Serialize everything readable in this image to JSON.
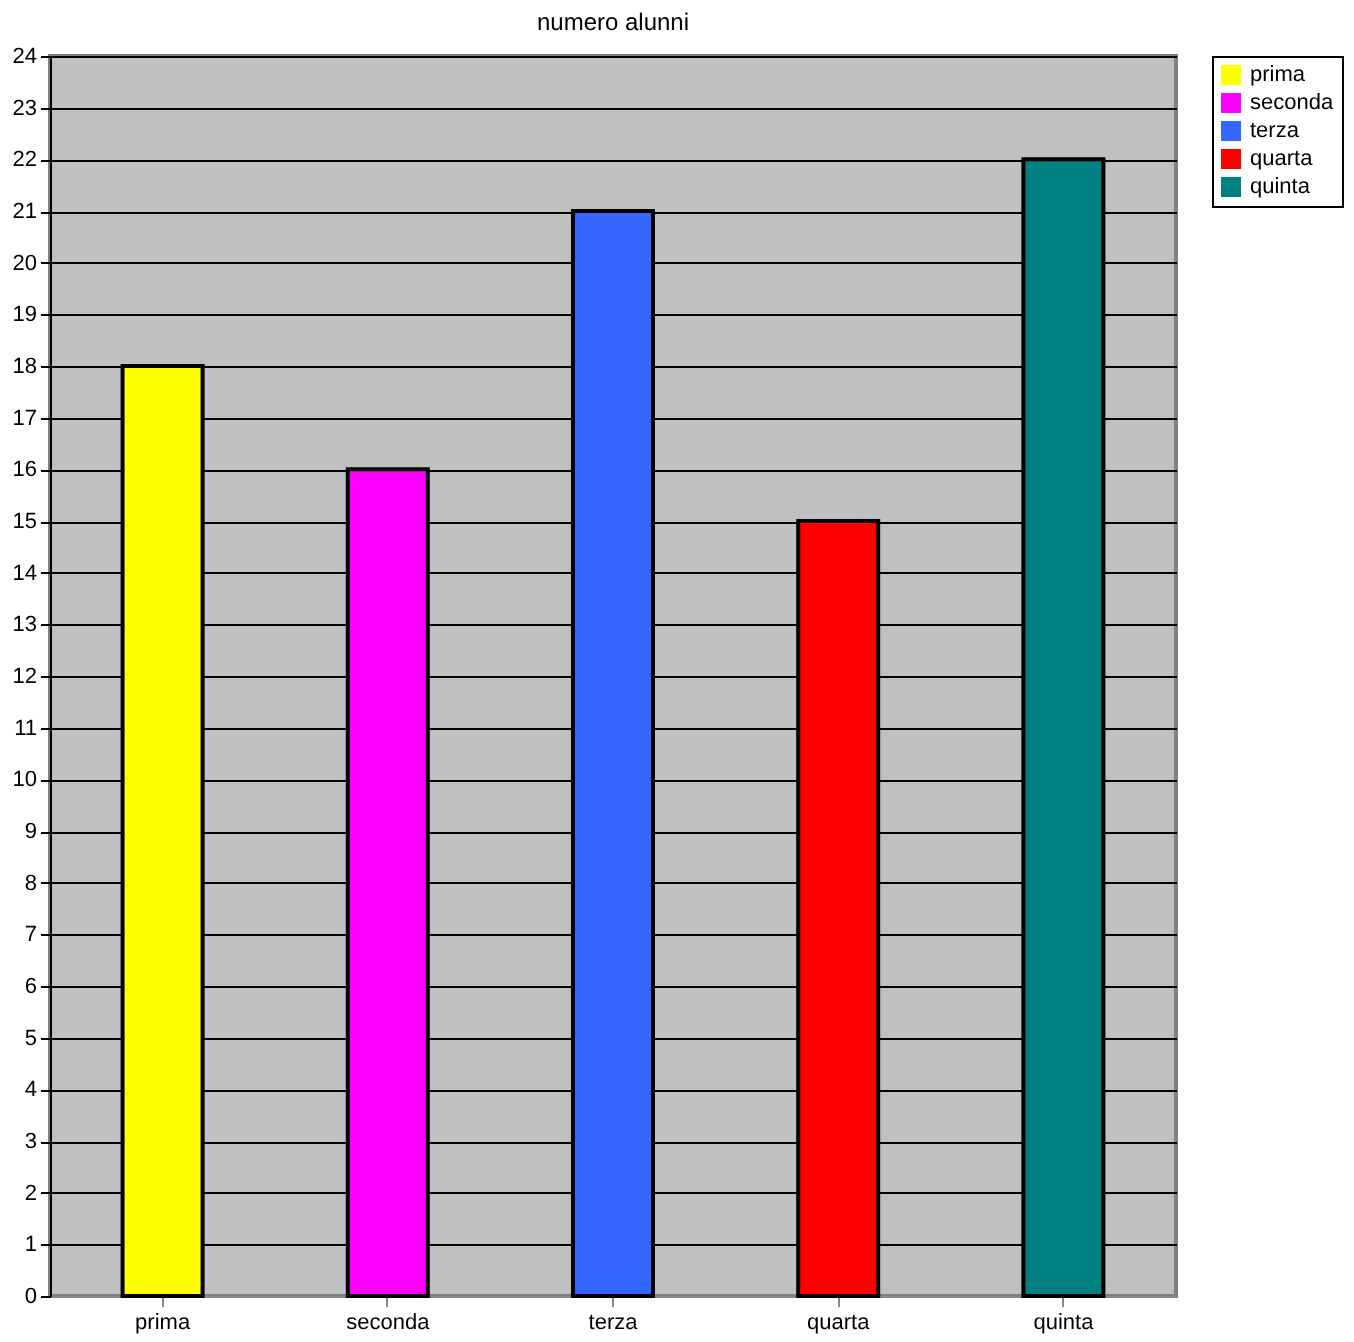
{
  "chart_data": {
    "type": "bar",
    "title": "numero alunni",
    "categories": [
      "prima",
      "seconda",
      "terza",
      "quarta",
      "quinta"
    ],
    "stacked": true,
    "series": [
      {
        "name": "prima",
        "color": "#ffff00",
        "values": [
          18,
          null,
          null,
          null,
          null
        ]
      },
      {
        "name": "seconda",
        "color": "#ff00ff",
        "values": [
          null,
          16,
          null,
          null,
          null
        ]
      },
      {
        "name": "terza",
        "color": "#3366ff",
        "values": [
          null,
          null,
          21,
          null,
          null
        ]
      },
      {
        "name": "quarta",
        "color": "#ff0000",
        "values": [
          null,
          null,
          null,
          15,
          null
        ]
      },
      {
        "name": "quinta",
        "color": "#008080",
        "values": [
          null,
          null,
          null,
          null,
          22
        ]
      }
    ],
    "ylim": [
      0,
      24
    ],
    "yticks": [
      0,
      1,
      2,
      3,
      4,
      5,
      6,
      7,
      8,
      9,
      10,
      11,
      12,
      13,
      14,
      15,
      16,
      17,
      18,
      19,
      20,
      21,
      22,
      23,
      24
    ],
    "grid": "y",
    "legend": "right"
  }
}
